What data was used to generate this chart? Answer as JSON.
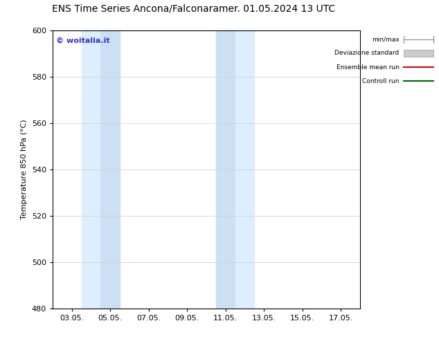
{
  "title_left": "ENS Time Series Ancona/Falconara",
  "title_right": "mer. 01.05.2024 13 UTC",
  "ylabel": "Temperature 850 hPa (°C)",
  "ylim": [
    480,
    600
  ],
  "yticks": [
    480,
    500,
    520,
    540,
    560,
    580,
    600
  ],
  "xtick_labels": [
    "03.05.",
    "05.05.",
    "07.05.",
    "09.05.",
    "11.05.",
    "13.05.",
    "15.05.",
    "17.05."
  ],
  "xtick_positions": [
    3,
    5,
    7,
    9,
    11,
    13,
    15,
    17
  ],
  "xlim": [
    2.0,
    18.0
  ],
  "shaded_bands": [
    {
      "xmin": 3.5,
      "xmax": 4.5,
      "color": "#ddeeff"
    },
    {
      "xmin": 4.5,
      "xmax": 5.5,
      "color": "#cce0f5"
    },
    {
      "xmin": 10.5,
      "xmax": 11.5,
      "color": "#cce0f5"
    },
    {
      "xmin": 11.5,
      "xmax": 12.5,
      "color": "#ddeeff"
    }
  ],
  "watermark_text": "© woitalia.it",
  "watermark_color": "#3333cc",
  "background_color": "#ffffff",
  "plot_bg_color": "#ffffff",
  "legend_items": [
    {
      "label": "min/max",
      "color": "#888888",
      "style": "minmax"
    },
    {
      "label": "Deviazione standard",
      "color": "#cccccc",
      "style": "bar"
    },
    {
      "label": "Ensemble mean run",
      "color": "#dd0000",
      "style": "line"
    },
    {
      "label": "Controll run",
      "color": "#006600",
      "style": "line"
    }
  ],
  "title_fontsize": 10,
  "tick_fontsize": 8,
  "ylabel_fontsize": 8,
  "watermark_fontsize": 8
}
